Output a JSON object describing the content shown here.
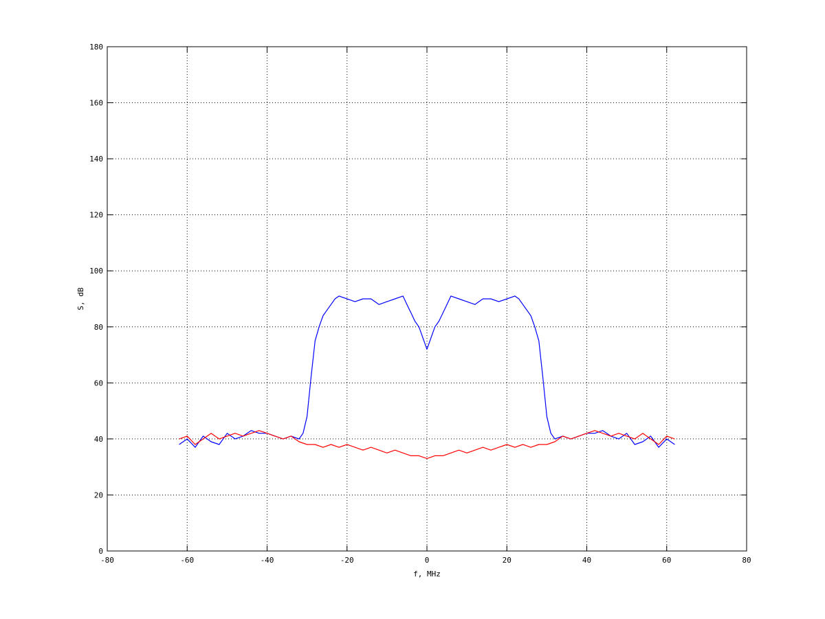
{
  "chart_data": {
    "type": "line",
    "title": "",
    "xlabel": "f, MHz",
    "ylabel": "S, dB",
    "xlim": [
      -80,
      80
    ],
    "ylim": [
      0,
      180
    ],
    "xticks": [
      -80,
      -60,
      -40,
      -20,
      0,
      20,
      40,
      60,
      80
    ],
    "yticks": [
      0,
      20,
      40,
      60,
      80,
      100,
      120,
      140,
      160,
      180
    ],
    "xtick_labels": [
      "-80",
      "-60",
      "-40",
      "-20",
      "0",
      "20",
      "40",
      "60",
      "80"
    ],
    "ytick_labels": [
      "0",
      "20",
      "40",
      "60",
      "80",
      "100",
      "120",
      "140",
      "160",
      "180"
    ],
    "grid": true,
    "legend": "none",
    "series": [
      {
        "color": "#0000ff",
        "x": [
          -62,
          -60,
          -58,
          -56,
          -54,
          -52,
          -50,
          -48,
          -46,
          -44,
          -42,
          -40,
          -38,
          -36,
          -34,
          -32,
          -31,
          -30,
          -29,
          -28,
          -27,
          -26,
          -25,
          -24,
          -23,
          -22,
          -20,
          -18,
          -16,
          -14,
          -12,
          -10,
          -8,
          -6,
          -5,
          -4,
          -3,
          -2,
          -1,
          0,
          1,
          2,
          3,
          4,
          5,
          6,
          8,
          10,
          12,
          14,
          16,
          18,
          20,
          22,
          23,
          24,
          25,
          26,
          27,
          28,
          29,
          30,
          31,
          32,
          34,
          36,
          38,
          40,
          42,
          44,
          46,
          48,
          50,
          52,
          54,
          56,
          58,
          60,
          62
        ],
        "y": [
          38,
          40,
          37,
          41,
          39,
          38,
          42,
          40,
          41,
          43,
          42,
          42,
          41,
          40,
          41,
          40,
          42,
          48,
          62,
          75,
          80,
          84,
          86,
          88,
          90,
          91,
          90,
          89,
          90,
          90,
          88,
          89,
          90,
          91,
          88,
          85,
          82,
          80,
          76,
          72,
          76,
          80,
          82,
          85,
          88,
          91,
          90,
          89,
          88,
          90,
          90,
          89,
          90,
          91,
          90,
          88,
          86,
          84,
          80,
          75,
          62,
          48,
          42,
          40,
          41,
          40,
          41,
          42,
          42,
          43,
          41,
          40,
          42,
          38,
          39,
          41,
          37,
          40,
          38
        ]
      },
      {
        "color": "#ff0000",
        "x": [
          -62,
          -60,
          -58,
          -56,
          -54,
          -52,
          -50,
          -48,
          -46,
          -44,
          -42,
          -40,
          -38,
          -36,
          -34,
          -32,
          -30,
          -28,
          -26,
          -24,
          -22,
          -20,
          -18,
          -16,
          -14,
          -12,
          -10,
          -8,
          -6,
          -4,
          -2,
          0,
          2,
          4,
          6,
          8,
          10,
          12,
          14,
          16,
          18,
          20,
          22,
          24,
          26,
          28,
          30,
          32,
          34,
          36,
          38,
          40,
          42,
          44,
          46,
          48,
          50,
          52,
          54,
          56,
          58,
          60,
          62
        ],
        "y": [
          40,
          41,
          38,
          40,
          42,
          40,
          41,
          42,
          41,
          42,
          43,
          42,
          41,
          40,
          41,
          39,
          38,
          38,
          37,
          38,
          37,
          38,
          37,
          36,
          37,
          36,
          35,
          36,
          35,
          34,
          34,
          33,
          34,
          34,
          35,
          36,
          35,
          36,
          37,
          36,
          37,
          38,
          37,
          38,
          37,
          38,
          38,
          39,
          41,
          40,
          41,
          42,
          43,
          42,
          41,
          42,
          41,
          40,
          42,
          40,
          38,
          41,
          40
        ]
      }
    ]
  }
}
